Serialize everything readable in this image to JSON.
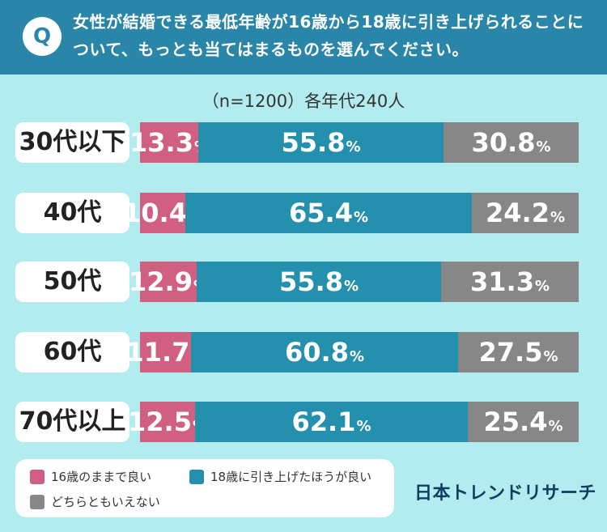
{
  "question": {
    "badge": "Q",
    "text": "女性が結婚できる最低年齢が16歳から18歳に引き上げられることについて、もっとも当てはまるものを選んでください。"
  },
  "sample_note": "（n=1200）各年代240人",
  "colors": {
    "header_bg": "#2a86a8",
    "page_bg": "#b3ecee",
    "option1": "#d05f81",
    "option2": "#2590ad",
    "option3": "#878787"
  },
  "chart_data": {
    "type": "bar",
    "orientation": "horizontal-stacked-100",
    "title": "女性が結婚できる最低年齢が16歳から18歳に引き上げられることについて、もっとも当てはまるものを選んでください。",
    "categories": [
      "30代以下",
      "40代",
      "50代",
      "60代",
      "70代以上"
    ],
    "unit": "%",
    "series": [
      {
        "name": "16歳のままで良い",
        "values": [
          13.3,
          10.4,
          12.9,
          11.7,
          12.5
        ]
      },
      {
        "name": "18歳に引き上げたほうが良い",
        "values": [
          55.8,
          65.4,
          55.8,
          60.8,
          62.1
        ]
      },
      {
        "name": "どちらともいえない",
        "values": [
          30.8,
          24.2,
          31.3,
          27.5,
          25.4
        ]
      }
    ],
    "legend": "bottom-left"
  },
  "brand": "日本トレンドリサーチ"
}
